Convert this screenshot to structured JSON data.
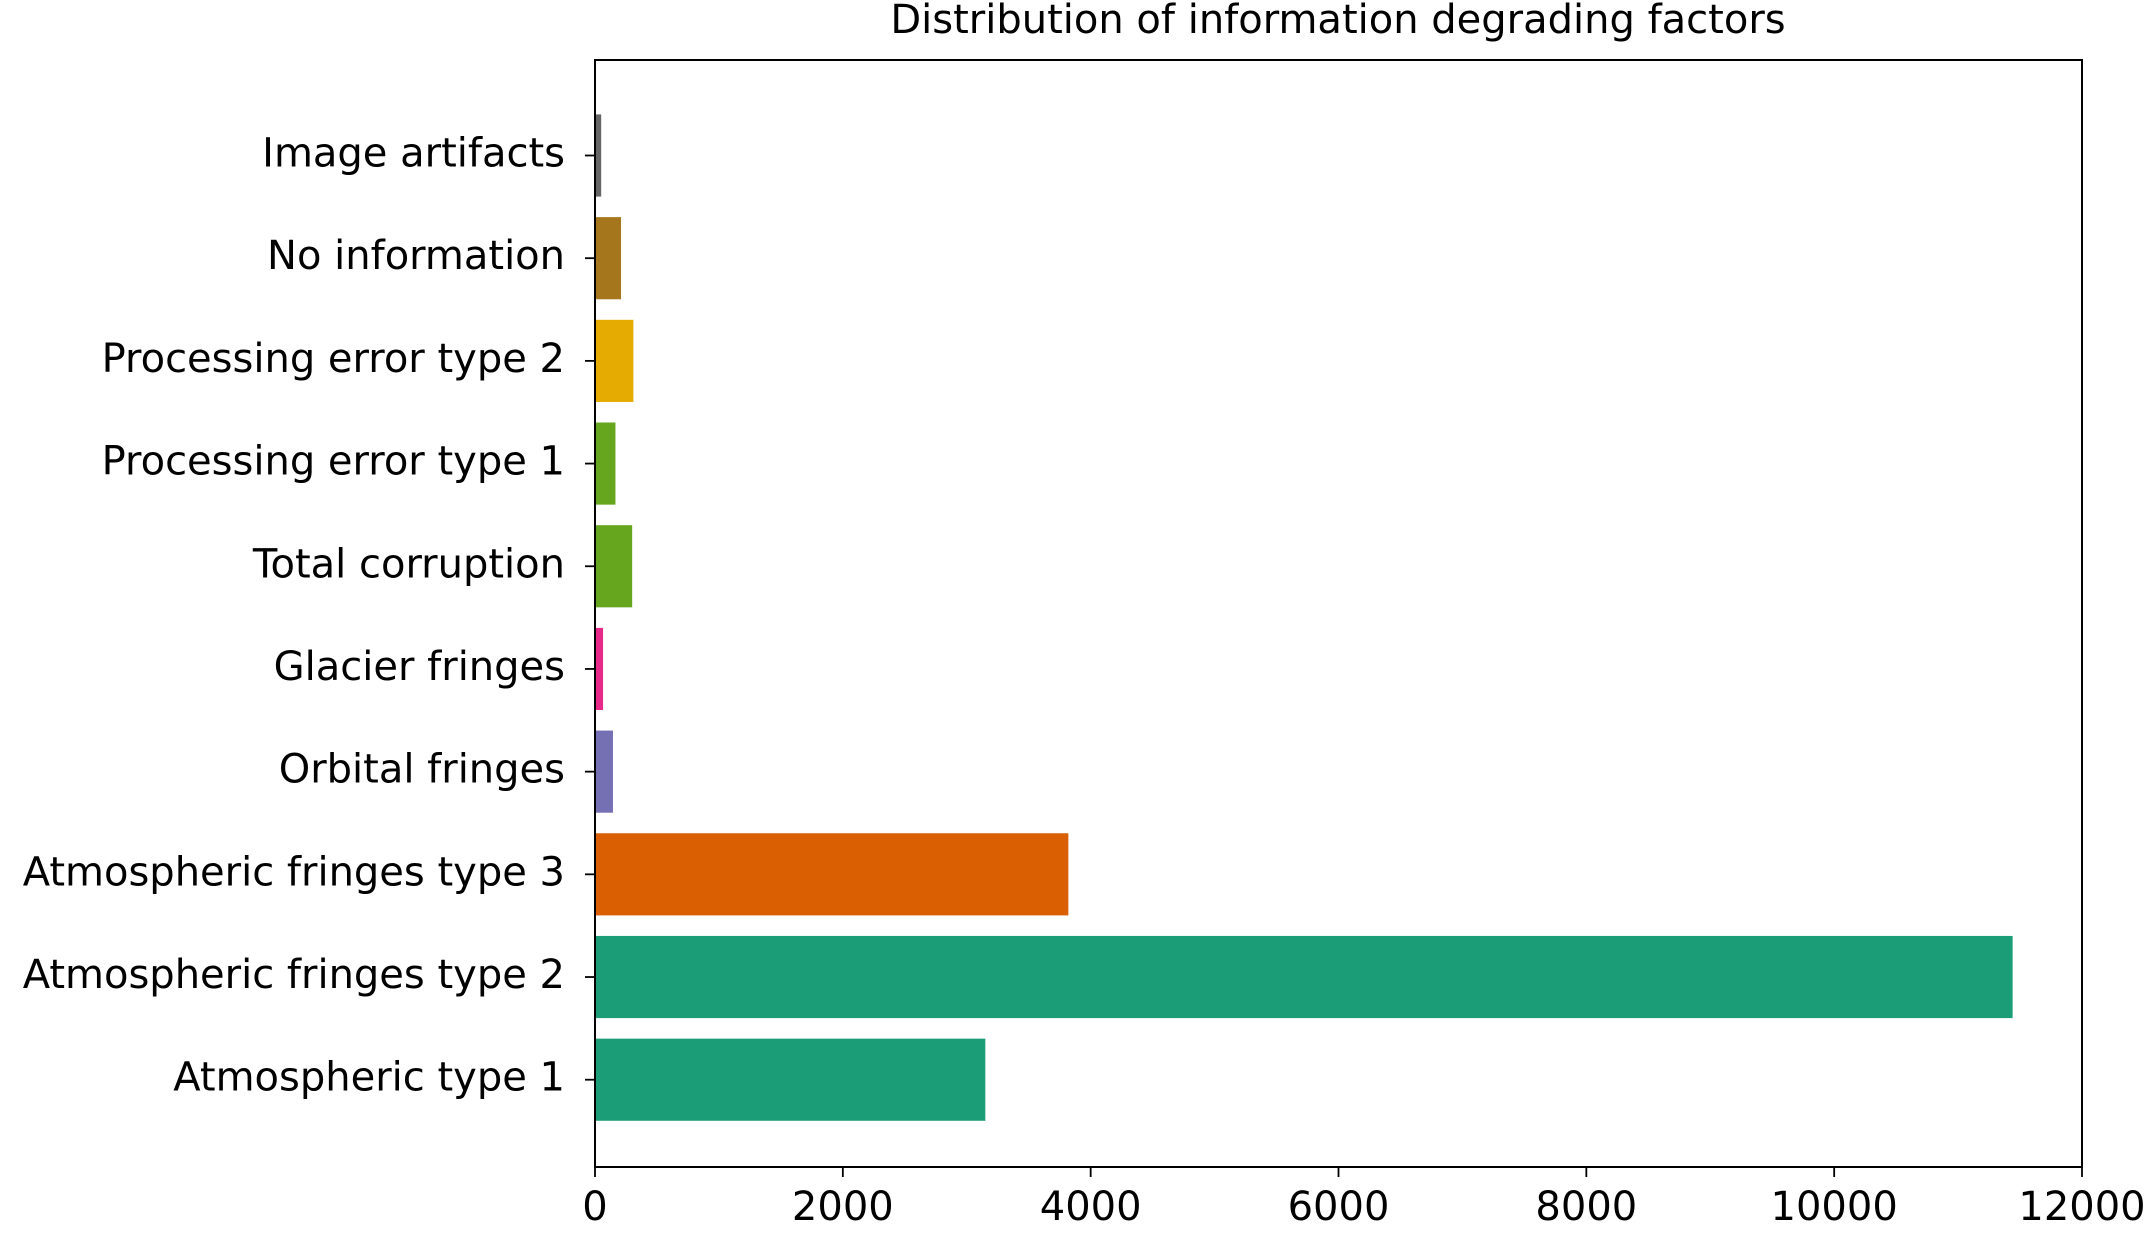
{
  "chart_data": {
    "type": "barh",
    "title": "Distribution of information degrading factors",
    "categories": [
      "Atmospheric type 1",
      "Atmospheric fringes type 2",
      "Atmospheric fringes type 3",
      "Orbital fringes",
      "Glacier fringes",
      "Total corruption",
      "Processing error type 1",
      "Processing error type 2",
      "No information",
      "Image artifacts"
    ],
    "values": [
      3150,
      11440,
      3820,
      145,
      65,
      300,
      165,
      310,
      210,
      50
    ],
    "colors": [
      "#1b9e77",
      "#1b9e77",
      "#d95f02",
      "#7570b3",
      "#e7298a",
      "#66a61e",
      "#66a61e",
      "#e6ab02",
      "#a6761d",
      "#666666"
    ],
    "xlim": [
      0,
      12000
    ],
    "xticks": [
      0,
      2000,
      4000,
      6000,
      8000,
      10000,
      12000
    ]
  }
}
